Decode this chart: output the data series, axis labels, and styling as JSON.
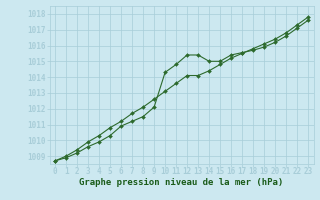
{
  "x": [
    0,
    1,
    2,
    3,
    4,
    5,
    6,
    7,
    8,
    9,
    10,
    11,
    12,
    13,
    14,
    15,
    16,
    17,
    18,
    19,
    20,
    21,
    22,
    23
  ],
  "line1": [
    1008.7,
    1008.9,
    1009.2,
    1009.6,
    1009.9,
    1010.3,
    1010.9,
    1011.2,
    1011.5,
    1012.1,
    1014.3,
    1014.8,
    1015.4,
    1015.4,
    1015.0,
    1015.0,
    1015.4,
    1015.55,
    1015.7,
    1015.9,
    1016.2,
    1016.6,
    1017.1,
    1017.6
  ],
  "line2": [
    1008.7,
    1009.0,
    1009.4,
    1009.9,
    1010.3,
    1010.8,
    1011.2,
    1011.7,
    1012.1,
    1012.6,
    1013.1,
    1013.6,
    1014.1,
    1014.1,
    1014.4,
    1014.8,
    1015.2,
    1015.5,
    1015.8,
    1016.1,
    1016.4,
    1016.8,
    1017.3,
    1017.8
  ],
  "ylim": [
    1008.5,
    1018.5
  ],
  "yticks": [
    1009,
    1010,
    1011,
    1012,
    1013,
    1014,
    1015,
    1016,
    1017,
    1018
  ],
  "xticks": [
    0,
    1,
    2,
    3,
    4,
    5,
    6,
    7,
    8,
    9,
    10,
    11,
    12,
    13,
    14,
    15,
    16,
    17,
    18,
    19,
    20,
    21,
    22,
    23
  ],
  "line_color": "#2d6a2d",
  "bg_color": "#cce8f0",
  "grid_color": "#a8cdd8",
  "xlabel": "Graphe pression niveau de la mer (hPa)",
  "xlabel_color": "#1a5c1a",
  "xlabel_fontsize": 6.5,
  "tick_fontsize": 5.5,
  "marker": "D",
  "marker_size": 2.0,
  "linewidth": 0.8
}
